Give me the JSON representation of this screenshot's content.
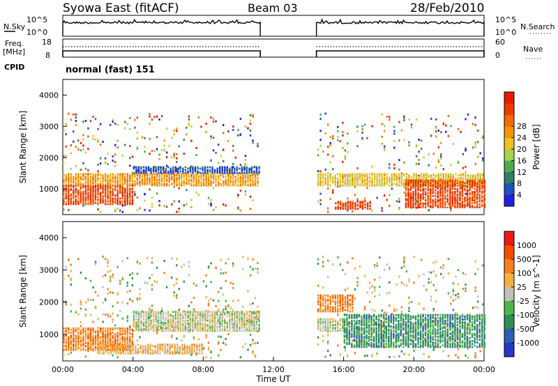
{
  "header": {
    "station": "Syowa East (fitACF)",
    "beam": "Beam 03",
    "date": "28/Feb/2010"
  },
  "left_labels": {
    "nsky": "N.Sky",
    "freq_line1": "Freq.",
    "freq_line2": "[MHz]",
    "cpid": "CPID"
  },
  "right_labels": {
    "nsearch": "N.Search",
    "nave": "Nave"
  },
  "cpid_text": "normal (fast) 151",
  "colors": {
    "power": [
      "#2020e0",
      "#2050c0",
      "#2f7f60",
      "#4fa850",
      "#a8d24f",
      "#f2c020",
      "#f59500",
      "#f26b00",
      "#ef3a00",
      "#e81b00"
    ],
    "velocity": [
      "#ee1a10",
      "#f24e00",
      "#f8801a",
      "#f7b040",
      "#c0c0b8",
      "#48b848",
      "#2f8f50",
      "#2f5fb0",
      "#2636c8"
    ]
  },
  "chart_data": [
    {
      "type": "line",
      "title": "",
      "series": [
        {
          "name": "N.Sky",
          "axis": "left",
          "segments": [
            [
              0.0,
              11.25
            ],
            [
              14.45,
              24.0
            ]
          ]
        },
        {
          "name": "N.Search",
          "axis": "right",
          "segments": [
            [
              0.0,
              11.25
            ],
            [
              14.45,
              24.0
            ]
          ]
        }
      ],
      "y_ticks_left": [
        "10^5",
        "10^0"
      ],
      "y_ticks_right": [
        "10^5",
        "10^0"
      ],
      "xlim": [
        0,
        24
      ]
    },
    {
      "type": "line",
      "series": [
        {
          "name": "Freq.",
          "axis": "left",
          "value": 8,
          "segments": [
            [
              0.0,
              11.25
            ],
            [
              14.45,
              24.0
            ]
          ]
        },
        {
          "name": "Nave",
          "axis": "right",
          "value": 30,
          "segments": [
            [
              0.0,
              11.25
            ],
            [
              14.45,
              24.0
            ]
          ]
        }
      ],
      "y_ticks_left": [
        "18",
        "8"
      ],
      "y_ticks_right": [
        "60",
        "0"
      ],
      "xlim": [
        0,
        24
      ]
    },
    {
      "type": "heatmap",
      "ylabel": "Slant Range [km]",
      "xlim": [
        0,
        24
      ],
      "ylim": [
        180,
        4500
      ],
      "y_ticks": [
        "1000",
        "2000",
        "3000",
        "4000"
      ],
      "colorbar_label": "Power [dB]",
      "colorbar_ticks": [
        "4",
        "8",
        "12",
        "16",
        "20",
        "24",
        "28"
      ],
      "bands": [
        {
          "t": [
            0.0,
            11.2
          ],
          "r": [
            1100,
            1500
          ],
          "level": 6
        },
        {
          "t": [
            0.0,
            4.0
          ],
          "r": [
            500,
            1100
          ],
          "level": 8
        },
        {
          "t": [
            4.0,
            11.2
          ],
          "r": [
            1500,
            1700
          ],
          "level": 1
        },
        {
          "t": [
            14.5,
            24.0
          ],
          "r": [
            1100,
            1500
          ],
          "level": 5
        },
        {
          "t": [
            19.5,
            24.0
          ],
          "r": [
            400,
            1300
          ],
          "level": 8
        },
        {
          "t": [
            15.5,
            17.5
          ],
          "r": [
            350,
            600
          ],
          "level": 8
        }
      ]
    },
    {
      "type": "heatmap",
      "ylabel": "Slant Range [km]",
      "xlabel": "Time UT",
      "xlim": [
        0,
        24
      ],
      "ylim": [
        180,
        4500
      ],
      "x_ticks": [
        "00:00",
        "04:00",
        "08:00",
        "12:00",
        "16:00",
        "20:00",
        "00:00"
      ],
      "y_ticks": [
        "1000",
        "2000",
        "3000",
        "4000"
      ],
      "colorbar_label": "Velocity [m s^-1]",
      "colorbar_ticks": [
        "1000",
        "500",
        "100",
        "25",
        "-25",
        "-100",
        "-500",
        "-1000"
      ],
      "bands": [
        {
          "t": [
            4.0,
            11.2
          ],
          "r": [
            1100,
            1700
          ],
          "level": 4
        },
        {
          "t": [
            0.0,
            4.0
          ],
          "r": [
            500,
            1200
          ],
          "level": 2
        },
        {
          "t": [
            2.0,
            8.0
          ],
          "r": [
            400,
            700
          ],
          "level": 3
        },
        {
          "t": [
            14.5,
            16.0
          ],
          "r": [
            1100,
            1500
          ],
          "level": 4
        },
        {
          "t": [
            16.0,
            24.0
          ],
          "r": [
            600,
            1600
          ],
          "level": 6
        },
        {
          "t": [
            14.5,
            16.5
          ],
          "r": [
            1700,
            2200
          ],
          "level": 2
        }
      ]
    }
  ]
}
